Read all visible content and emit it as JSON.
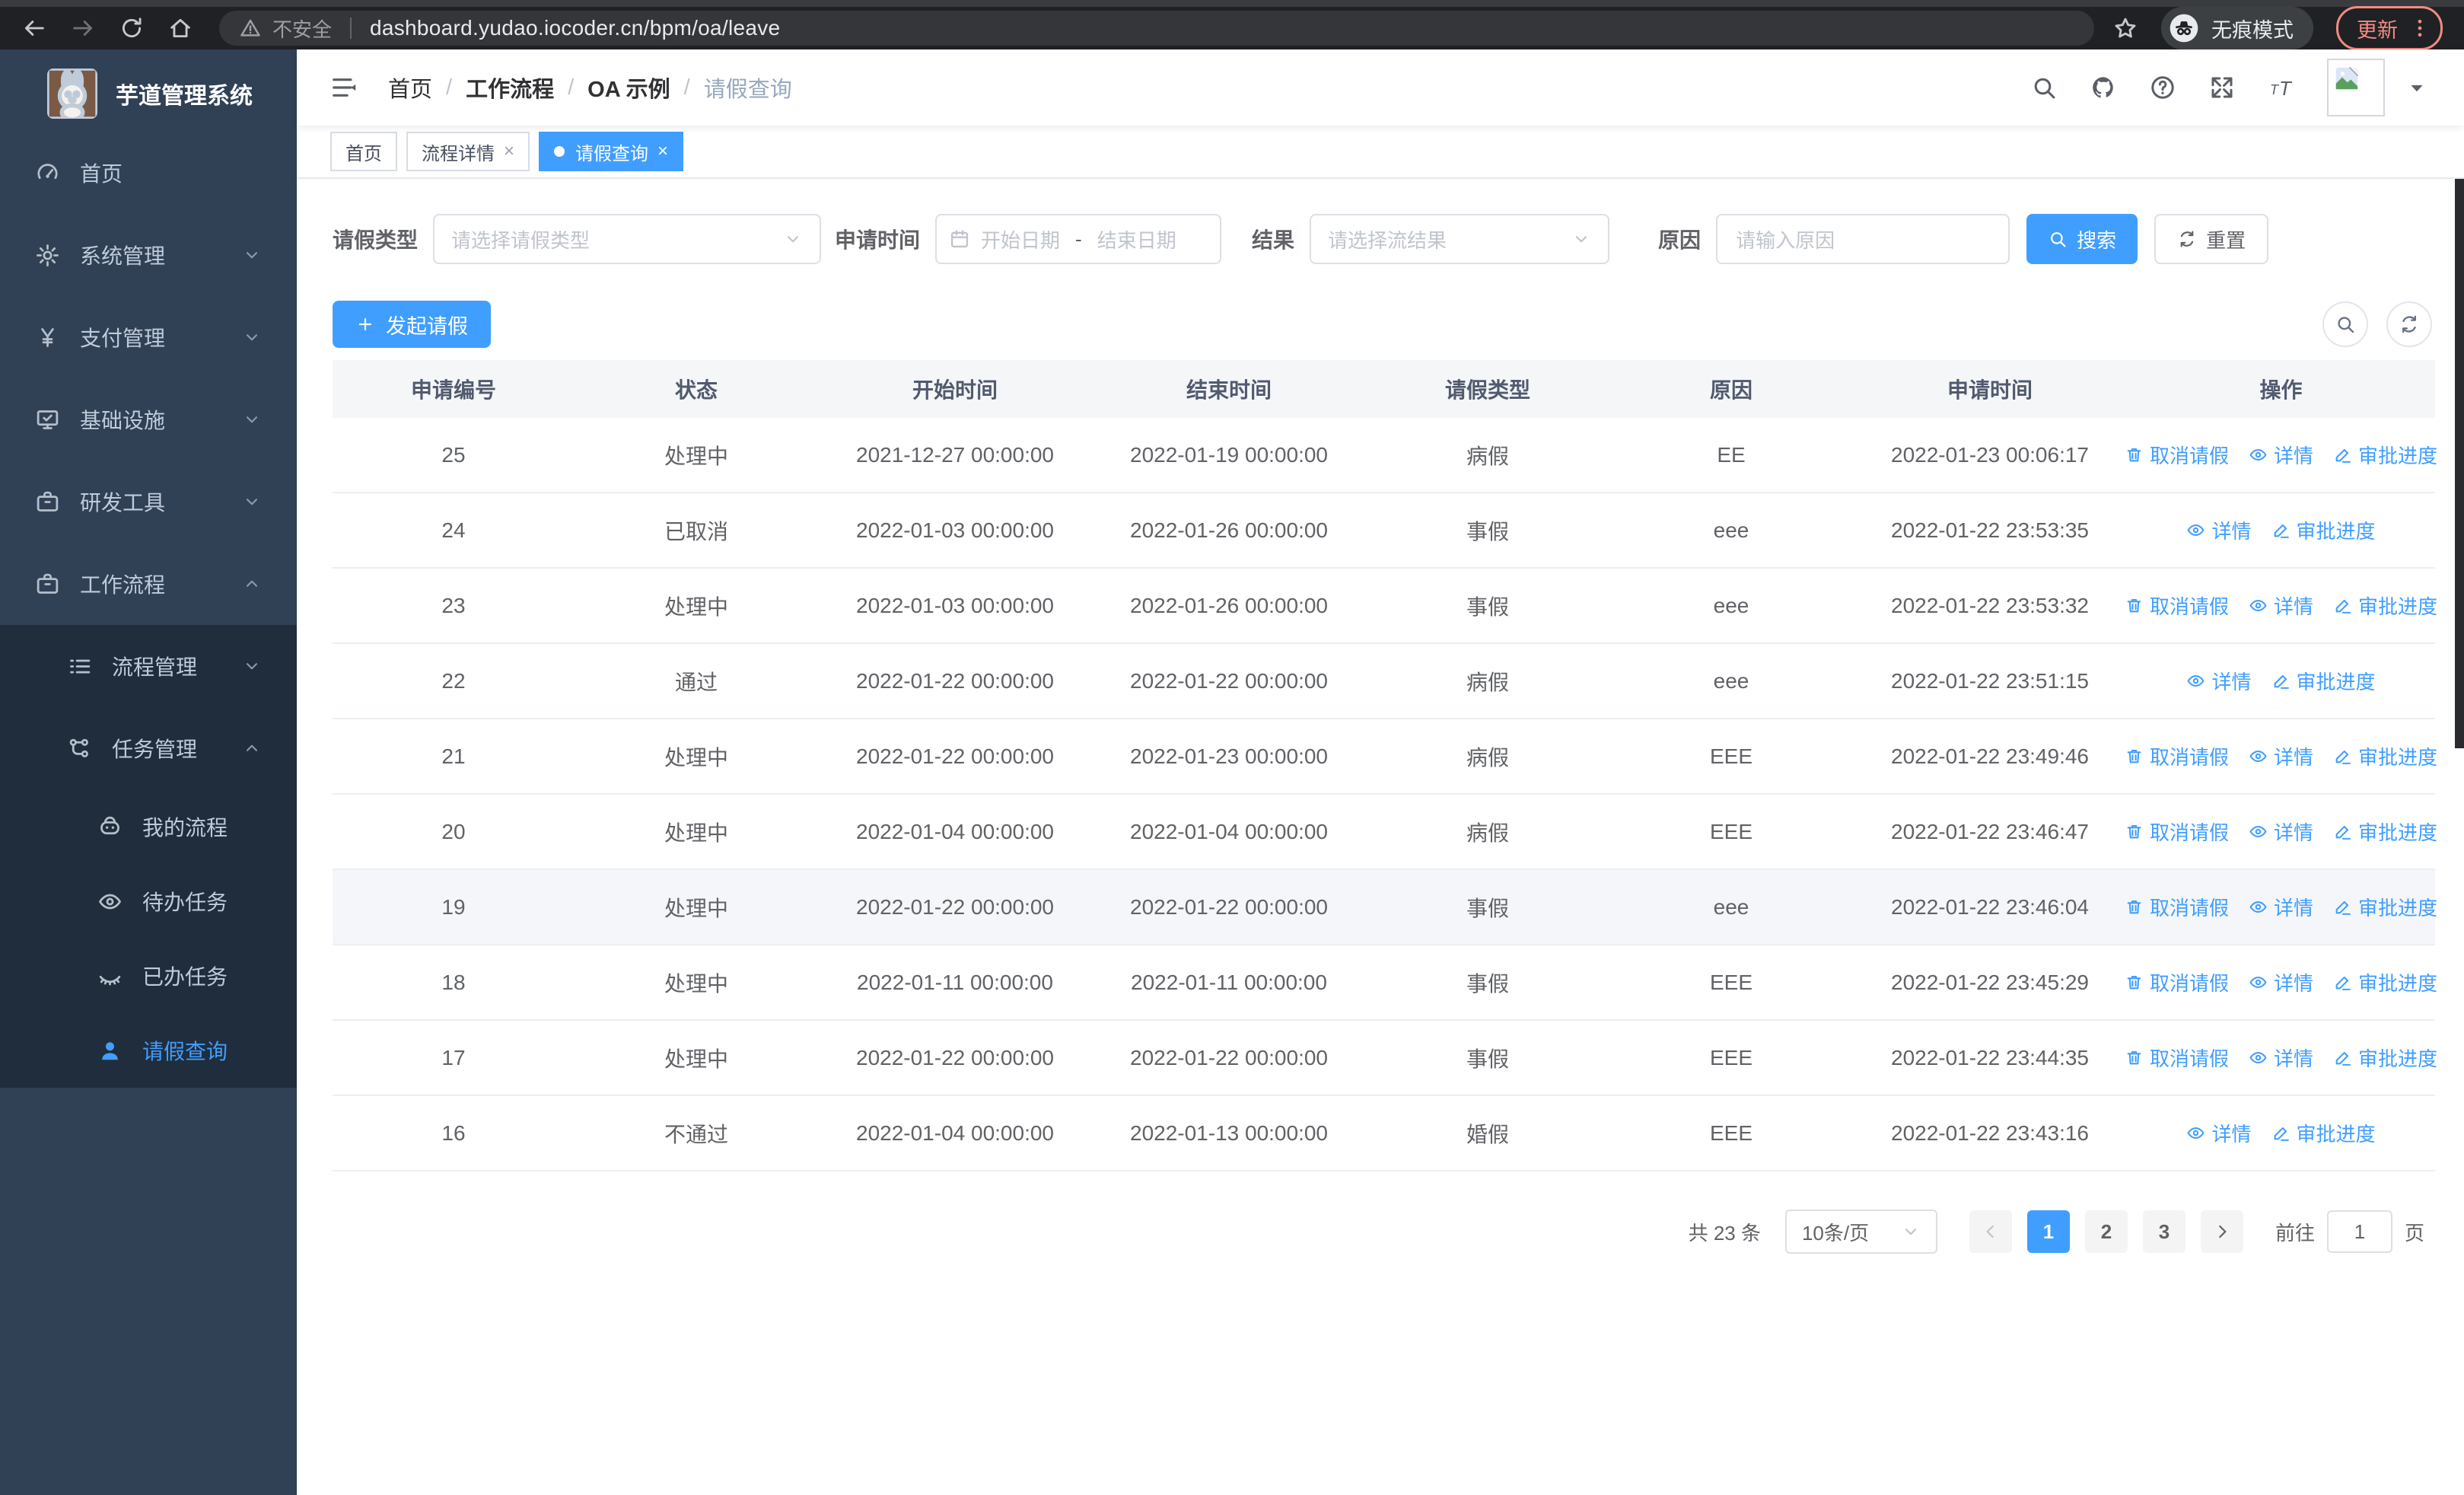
{
  "browser": {
    "security": "不安全",
    "url": "dashboard.yudao.iocoder.cn/bpm/oa/leave",
    "incognito": "无痕模式",
    "update": "更新"
  },
  "glyphs": {
    "close": "×",
    "separator": "/"
  },
  "sidebar": {
    "title": "芋道管理系统",
    "items": [
      {
        "key": "home",
        "label": "首页",
        "icon": "gauge-icon",
        "level": 1,
        "submenu": false,
        "active": false,
        "expand": ""
      },
      {
        "key": "system",
        "label": "系统管理",
        "icon": "gear-icon",
        "level": 1,
        "submenu": false,
        "active": false,
        "expand": "down"
      },
      {
        "key": "payment",
        "label": "支付管理",
        "icon": "yen-icon",
        "level": 1,
        "submenu": false,
        "active": false,
        "expand": "down"
      },
      {
        "key": "infrastructure",
        "label": "基础设施",
        "icon": "infra-icon",
        "level": 1,
        "submenu": false,
        "active": false,
        "expand": "down"
      },
      {
        "key": "devtools",
        "label": "研发工具",
        "icon": "toolbox-icon",
        "level": 1,
        "submenu": false,
        "active": false,
        "expand": "down"
      },
      {
        "key": "workflow",
        "label": "工作流程",
        "icon": "toolbox-icon",
        "level": 1,
        "submenu": false,
        "active": false,
        "expand": "up"
      },
      {
        "key": "process-mgmt",
        "label": "流程管理",
        "icon": "flow-icon",
        "level": 2,
        "submenu": true,
        "active": false,
        "expand": "down"
      },
      {
        "key": "task-mgmt",
        "label": "任务管理",
        "icon": "task-icon",
        "level": 2,
        "submenu": true,
        "active": false,
        "expand": "up"
      },
      {
        "key": "my-process",
        "label": "我的流程",
        "icon": "robot-icon",
        "level": 3,
        "submenu": true,
        "active": false,
        "expand": ""
      },
      {
        "key": "todo-tasks",
        "label": "待办任务",
        "icon": "eye-icon",
        "level": 3,
        "submenu": true,
        "active": false,
        "expand": ""
      },
      {
        "key": "done-tasks",
        "label": "已办任务",
        "icon": "eye-closed-icon",
        "level": 3,
        "submenu": true,
        "active": false,
        "expand": ""
      },
      {
        "key": "leave-query",
        "label": "请假查询",
        "icon": "user-icon",
        "level": 3,
        "submenu": true,
        "active": true,
        "expand": ""
      }
    ]
  },
  "header": {
    "breadcrumb": [
      "首页",
      "工作流程",
      "OA 示例",
      "请假查询"
    ]
  },
  "tabs": [
    {
      "key": "home",
      "label": "首页",
      "closable": false,
      "active": false
    },
    {
      "key": "process-detail",
      "label": "流程详情",
      "closable": true,
      "active": false
    },
    {
      "key": "leave-query",
      "label": "请假查询",
      "closable": true,
      "active": true
    }
  ],
  "filters": {
    "type_label": "请假类型",
    "type_placeholder": "请选择请假类型",
    "time_label": "申请时间",
    "start_placeholder": "开始日期",
    "range_separator": "-",
    "end_placeholder": "结束日期",
    "result_label": "结果",
    "result_placeholder": "请选择流结果",
    "reason_label": "原因",
    "reason_placeholder": "请输入原因",
    "search": "搜索",
    "reset": "重置"
  },
  "actions_bar": {
    "create": "发起请假"
  },
  "table": {
    "columns": [
      "申请编号",
      "状态",
      "开始时间",
      "结束时间",
      "请假类型",
      "原因",
      "申请时间",
      "操作"
    ],
    "action_labels": {
      "cancel": "取消请假",
      "detail": "详情",
      "progress": "审批进度"
    },
    "rows": [
      {
        "id": "25",
        "status": "处理中",
        "start": "2021-12-27 00:00:00",
        "end": "2022-01-19 00:00:00",
        "type": "病假",
        "reason": "EE",
        "applied": "2022-01-23 00:06:17",
        "actions": [
          "cancel",
          "detail",
          "progress"
        ],
        "highlight": false
      },
      {
        "id": "24",
        "status": "已取消",
        "start": "2022-01-03 00:00:00",
        "end": "2022-01-26 00:00:00",
        "type": "事假",
        "reason": "eee",
        "applied": "2022-01-22 23:53:35",
        "actions": [
          "detail",
          "progress"
        ],
        "highlight": false
      },
      {
        "id": "23",
        "status": "处理中",
        "start": "2022-01-03 00:00:00",
        "end": "2022-01-26 00:00:00",
        "type": "事假",
        "reason": "eee",
        "applied": "2022-01-22 23:53:32",
        "actions": [
          "cancel",
          "detail",
          "progress"
        ],
        "highlight": false
      },
      {
        "id": "22",
        "status": "通过",
        "start": "2022-01-22 00:00:00",
        "end": "2022-01-22 00:00:00",
        "type": "病假",
        "reason": "eee",
        "applied": "2022-01-22 23:51:15",
        "actions": [
          "detail",
          "progress"
        ],
        "highlight": false
      },
      {
        "id": "21",
        "status": "处理中",
        "start": "2022-01-22 00:00:00",
        "end": "2022-01-23 00:00:00",
        "type": "病假",
        "reason": "EEE",
        "applied": "2022-01-22 23:49:46",
        "actions": [
          "cancel",
          "detail",
          "progress"
        ],
        "highlight": false
      },
      {
        "id": "20",
        "status": "处理中",
        "start": "2022-01-04 00:00:00",
        "end": "2022-01-04 00:00:00",
        "type": "病假",
        "reason": "EEE",
        "applied": "2022-01-22 23:46:47",
        "actions": [
          "cancel",
          "detail",
          "progress"
        ],
        "highlight": false
      },
      {
        "id": "19",
        "status": "处理中",
        "start": "2022-01-22 00:00:00",
        "end": "2022-01-22 00:00:00",
        "type": "事假",
        "reason": "eee",
        "applied": "2022-01-22 23:46:04",
        "actions": [
          "cancel",
          "detail",
          "progress"
        ],
        "highlight": true
      },
      {
        "id": "18",
        "status": "处理中",
        "start": "2022-01-11 00:00:00",
        "end": "2022-01-11 00:00:00",
        "type": "事假",
        "reason": "EEE",
        "applied": "2022-01-22 23:45:29",
        "actions": [
          "cancel",
          "detail",
          "progress"
        ],
        "highlight": false
      },
      {
        "id": "17",
        "status": "处理中",
        "start": "2022-01-22 00:00:00",
        "end": "2022-01-22 00:00:00",
        "type": "事假",
        "reason": "EEE",
        "applied": "2022-01-22 23:44:35",
        "actions": [
          "cancel",
          "detail",
          "progress"
        ],
        "highlight": false
      },
      {
        "id": "16",
        "status": "不通过",
        "start": "2022-01-04 00:00:00",
        "end": "2022-01-13 00:00:00",
        "type": "婚假",
        "reason": "EEE",
        "applied": "2022-01-22 23:43:16",
        "actions": [
          "detail",
          "progress"
        ],
        "highlight": false
      }
    ]
  },
  "pagination": {
    "total": "共 23 条",
    "page_size": "10条/页",
    "pages": [
      "1",
      "2",
      "3"
    ],
    "active": "1",
    "goto": "前往",
    "goto_value": "1",
    "unit": "页"
  },
  "colors": {
    "accent": "#409eff",
    "sidebar_bg": "#304156",
    "submenu_bg": "#1f2d3d",
    "update_badge": "#f28b82"
  }
}
